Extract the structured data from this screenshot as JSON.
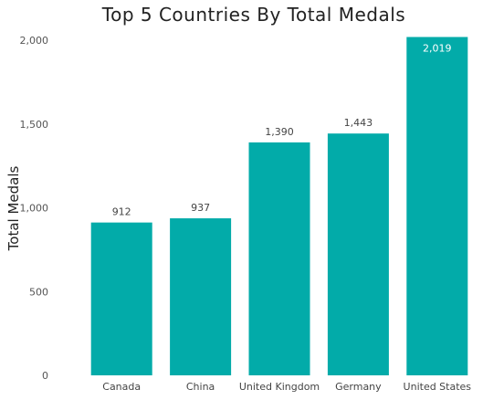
{
  "chart_data": {
    "type": "bar",
    "title": "Top 5 Countries By Total Medals",
    "xlabel": "",
    "ylabel": "Total Medals",
    "categories": [
      "Canada",
      "China",
      "United Kingdom",
      "Germany",
      "United States"
    ],
    "values": [
      912,
      937,
      1390,
      1443,
      2019
    ],
    "value_labels": [
      "912",
      "937",
      "1,390",
      "1,443",
      "2,019"
    ],
    "ylim": [
      0,
      2000
    ],
    "yticks": [
      0,
      500,
      1000,
      1500,
      2000
    ],
    "ytick_labels": [
      "0",
      "500",
      "1,000",
      "1,500",
      "2,000"
    ],
    "bar_color": "#02ABA9",
    "grid": false,
    "legend": "none"
  }
}
